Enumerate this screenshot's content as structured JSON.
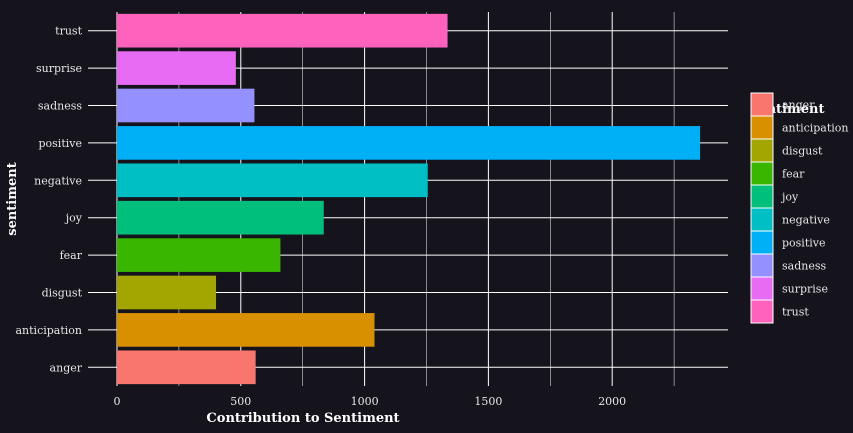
{
  "chart_data": {
    "type": "bar",
    "orientation": "horizontal",
    "title": "",
    "xlabel": "Contribution to Sentiment",
    "ylabel": "sentiment",
    "xlim": [
      0,
      2450
    ],
    "x_ticks": [
      0,
      500,
      1000,
      1500,
      2000
    ],
    "grid": true,
    "legend_position": "right",
    "legend_title": "sentiment",
    "categories": [
      "anger",
      "anticipation",
      "disgust",
      "fear",
      "joy",
      "negative",
      "positive",
      "sadness",
      "surprise",
      "trust"
    ],
    "values": [
      560,
      1040,
      400,
      660,
      835,
      1255,
      2355,
      555,
      480,
      1335
    ],
    "colors": [
      "#F8766D",
      "#D89000",
      "#A3A500",
      "#39B600",
      "#00BF7D",
      "#00BFC4",
      "#00B0F6",
      "#9590FF",
      "#E76BF3",
      "#FF62BC"
    ]
  }
}
